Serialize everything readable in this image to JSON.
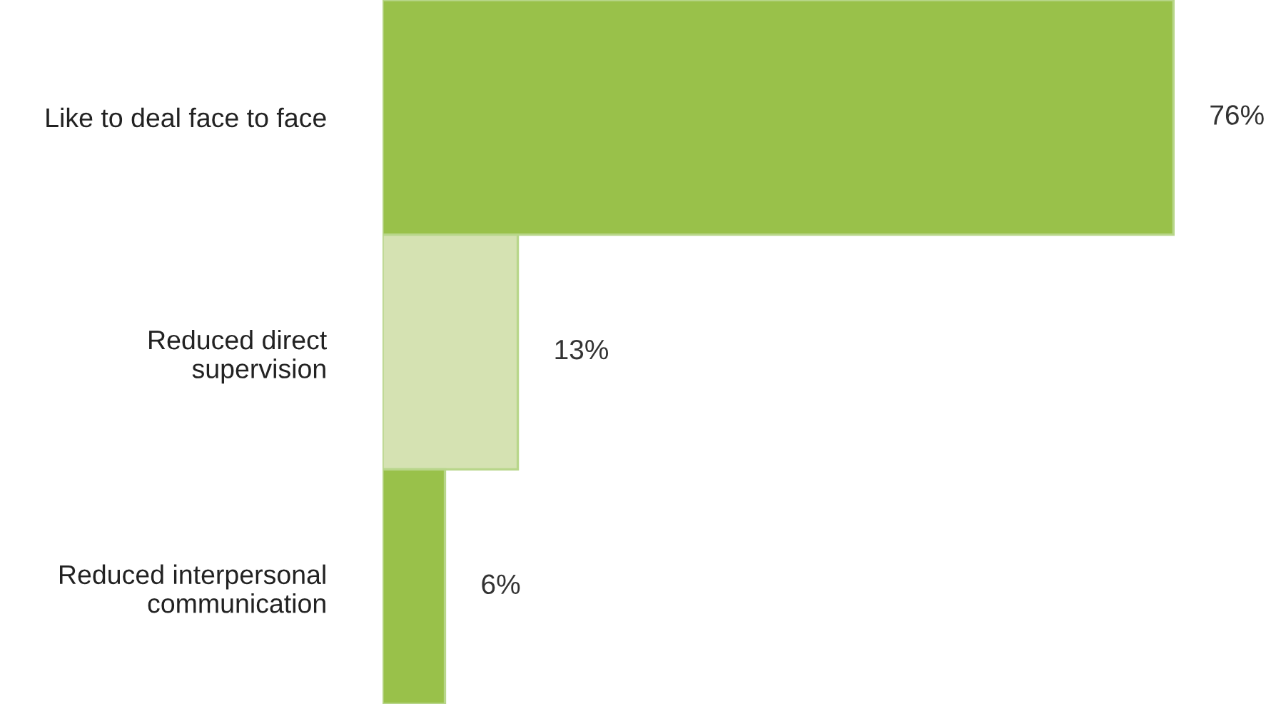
{
  "chart_data": {
    "type": "bar",
    "orientation": "horizontal",
    "categories": [
      "Like to deal face to face",
      "Reduced direct\nsupervision",
      "Reduced interpersonal\ncommunication"
    ],
    "values": [
      76,
      13,
      6
    ],
    "colors": [
      "#99c14a",
      "#d5e2b2",
      "#99c14a"
    ],
    "value_labels": [
      "76%",
      "13%",
      "6%"
    ],
    "grid": false,
    "legend": false
  }
}
